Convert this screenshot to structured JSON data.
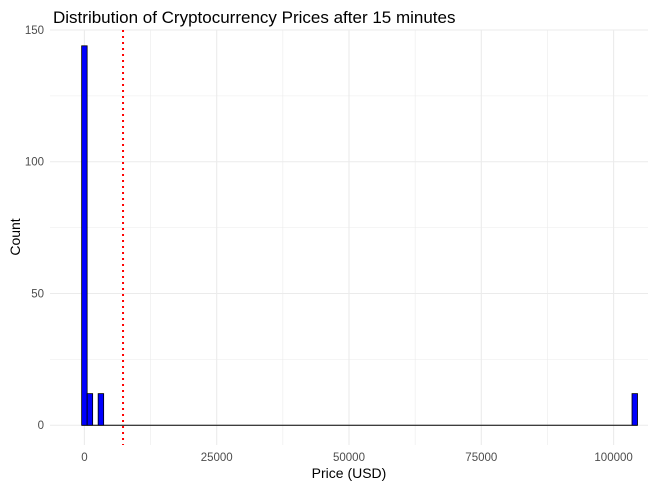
{
  "chart_data": {
    "type": "bar",
    "title": "Distribution of Cryptocurrency Prices after 15 minutes",
    "xlabel": "Price (USD)",
    "ylabel": "Count",
    "xlim": [
      -6500,
      106500
    ],
    "ylim": [
      -7.5,
      150
    ],
    "x_ticks": [
      0,
      25000,
      50000,
      75000,
      100000
    ],
    "x_tick_labels": [
      "0",
      "25000",
      "50000",
      "75000",
      "100000"
    ],
    "y_ticks": [
      0,
      50,
      100,
      150
    ],
    "y_tick_labels": [
      "0",
      "50",
      "100",
      "150"
    ],
    "grid": true,
    "bin_width": 1040,
    "bins": [
      {
        "x": 0,
        "count": 144
      },
      {
        "x": 1040,
        "count": 12
      },
      {
        "x": 3120,
        "count": 12
      },
      {
        "x": 104000,
        "count": 12
      }
    ],
    "mean_line": {
      "x": 7300,
      "style": "dotted"
    },
    "colors": {
      "bar_fill": "#0000ff",
      "bar_stroke": "#000000",
      "mean_line": "#ff0000",
      "grid": "#ebebeb"
    }
  }
}
